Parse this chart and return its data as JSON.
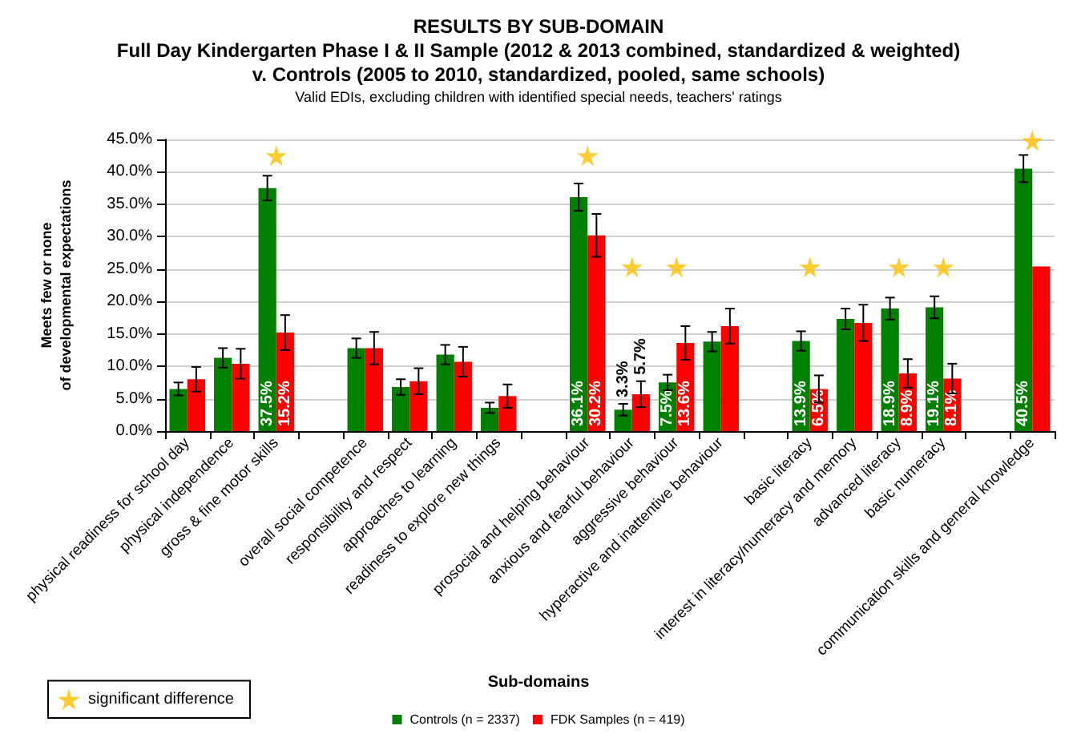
{
  "chart_data": {
    "type": "bar",
    "title": "RESULTS BY SUB-DOMAIN\nFull Day Kindergarten Phase I & II Sample (2012 & 2013 combined, standardized & weighted)\nv. Controls (2005 to 2010, standardized, pooled, same schools)",
    "subtitle": "Valid EDIs, excluding children with identified special needs, teachers' ratings",
    "xlabel": "Sub-domains",
    "ylabel": "Meets few or none\nof developmental expectations",
    "categories": [
      "physical readiness for school day",
      "physical independence",
      "gross & fine motor skills",
      null,
      "overall social competence",
      "responsibility and respect",
      "approaches to learning",
      "readiness to explore new things",
      null,
      "prosocial and helping behaviour",
      "anxious and fearful behaviour",
      "aggressive behaviour",
      "hyperactive and inattentive behaviour",
      null,
      "basic literacy",
      "interest in literacy/numeracy and memory",
      "advanced literacy",
      "basic numeracy",
      null,
      "communication skills and general knowledge"
    ],
    "series": [
      {
        "name": "Controls (n = 2337)",
        "color": "#008000",
        "values": [
          6.5,
          11.3,
          37.5,
          null,
          12.8,
          6.8,
          11.8,
          3.6,
          null,
          36.1,
          3.3,
          7.5,
          13.8,
          null,
          13.9,
          17.3,
          18.9,
          19.1,
          null,
          40.5
        ],
        "errors": [
          1.0,
          1.5,
          1.9,
          null,
          1.5,
          1.2,
          1.5,
          0.8,
          null,
          2.1,
          0.9,
          1.2,
          1.5,
          null,
          1.5,
          1.6,
          1.7,
          1.7,
          null,
          2.1
        ],
        "value_labels": [
          null,
          null,
          "37.5%",
          null,
          null,
          null,
          null,
          null,
          null,
          "36.1%",
          "3.3%",
          "7.5%",
          null,
          null,
          "13.9%",
          null,
          "18.9%",
          "19.1%",
          null,
          "40.5%"
        ]
      },
      {
        "name": "FDK Samples (n = 419)",
        "color": "#ff0000",
        "values": [
          8.0,
          10.4,
          15.2,
          null,
          12.8,
          7.7,
          10.7,
          5.4,
          null,
          30.2,
          5.7,
          13.6,
          16.2,
          null,
          6.5,
          16.7,
          8.9,
          8.1,
          null,
          25.4
        ],
        "errors": [
          1.9,
          2.3,
          2.7,
          null,
          2.5,
          2.0,
          2.3,
          1.8,
          null,
          3.3,
          2.0,
          2.6,
          2.7,
          null,
          2.1,
          2.8,
          2.2,
          2.3,
          null,
          null
        ],
        "value_labels": [
          null,
          null,
          "15.2%",
          null,
          null,
          null,
          null,
          null,
          null,
          "30.2%",
          "5.7%",
          "13.6%",
          null,
          null,
          "6.5%",
          null,
          "8.9%",
          "8.1%",
          null,
          null
        ]
      },
      {
        "name": "significant difference",
        "type": "scatter",
        "marker": "star",
        "color": "#ffc000",
        "x": [
          "gross & fine motor skills",
          "prosocial and helping behaviour",
          "anxious and fearful behaviour",
          "aggressive behaviour",
          "basic literacy",
          "advanced literacy",
          "basic numeracy",
          "communication skills and general knowledge"
        ],
        "values": [
          42.5,
          42.5,
          25.3,
          25.3,
          25.3,
          25.3,
          25.3,
          44.8
        ]
      }
    ],
    "ylim": [
      0,
      45
    ],
    "yticks": [
      {
        "value": 0,
        "label": "0.0%"
      },
      {
        "value": 5,
        "label": "5.0%"
      },
      {
        "value": 10,
        "label": "10.0%"
      },
      {
        "value": 15,
        "label": "15.0%"
      },
      {
        "value": 20,
        "label": "20.0%"
      },
      {
        "value": 25,
        "label": "25.0%"
      },
      {
        "value": 30,
        "label": "30.0%"
      },
      {
        "value": 35,
        "label": "35.0%"
      },
      {
        "value": 40,
        "label": "40.0%"
      },
      {
        "value": 45,
        "label": "45.0%"
      }
    ],
    "grid": "y",
    "legend": "bottom"
  }
}
